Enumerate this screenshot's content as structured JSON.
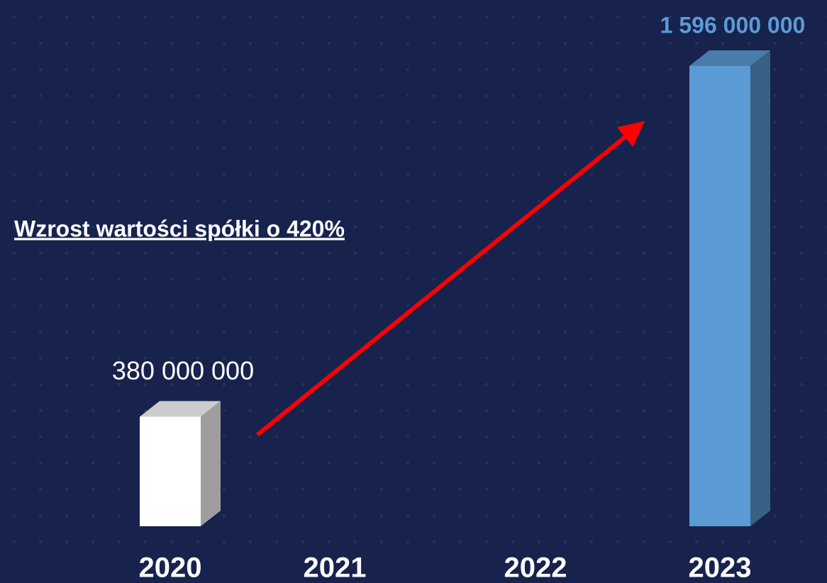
{
  "chart_data": {
    "type": "bar3d",
    "categories": [
      "2020",
      "2021",
      "2022",
      "2023"
    ],
    "values": [
      380000000,
      null,
      null,
      1596000000
    ],
    "value_labels": [
      "380 000 000",
      null,
      null,
      "1 596 000 000"
    ],
    "colors": [
      "#ffffff",
      "#ffffff",
      "#ffffff",
      "#5b9bd5"
    ],
    "annotation": "Wzrost wartości spółki o 420%"
  }
}
